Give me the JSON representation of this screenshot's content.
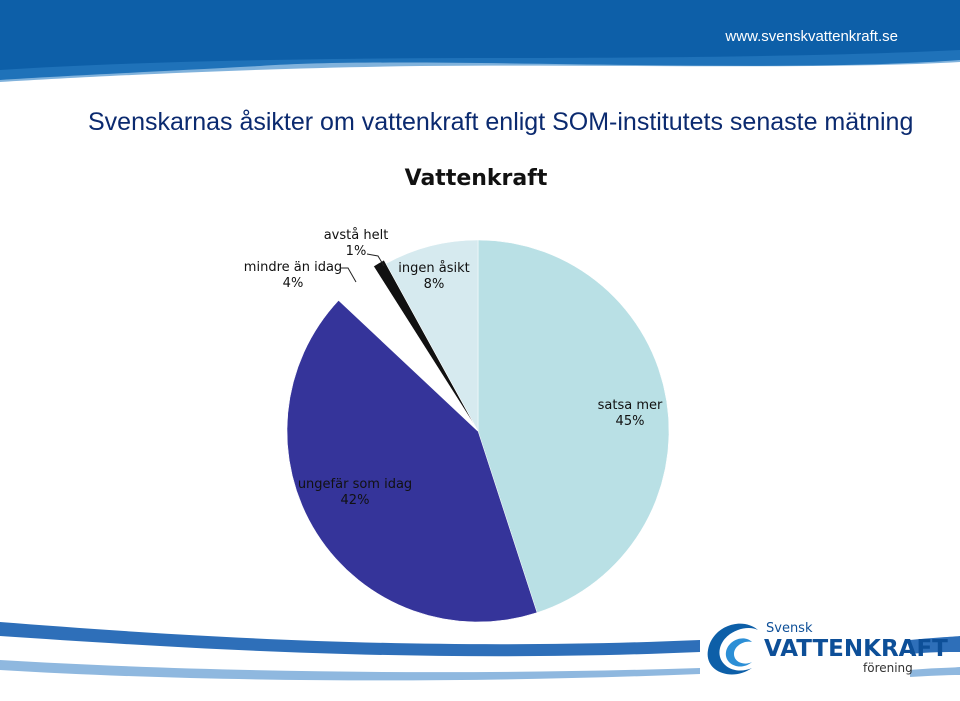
{
  "header": {
    "url": "www.svenskvattenkraft.se"
  },
  "slide": {
    "title": "Svenskarnas åsikter om vattenkraft enligt SOM-institutets senaste mätning"
  },
  "logo": {
    "line1": "Svensk",
    "line2": "VATTENKRAFT",
    "line3": "förening"
  },
  "colors": {
    "header_blue": "#0d5fa8",
    "title": "#0b2a6f"
  },
  "chart_data": {
    "type": "pie",
    "title": "Vattenkraft",
    "slices": [
      {
        "name": "satsa mer",
        "label": "45%",
        "value": 45,
        "color": "#b9e0e5"
      },
      {
        "name": "ungefär som idag",
        "label": "42%",
        "value": 42,
        "color": "#35349a"
      },
      {
        "name": "mindre än idag",
        "label": "4%",
        "value": 4,
        "color": "#ffffff"
      },
      {
        "name": "avstå helt",
        "label": "1%",
        "value": 1,
        "color": "#111111"
      },
      {
        "name": "ingen åsikt",
        "label": "8%",
        "value": 8,
        "color": "#d6eaef"
      }
    ],
    "start": "12 o'clock",
    "direction": "clockwise",
    "legend": "none, labels beside slices"
  }
}
